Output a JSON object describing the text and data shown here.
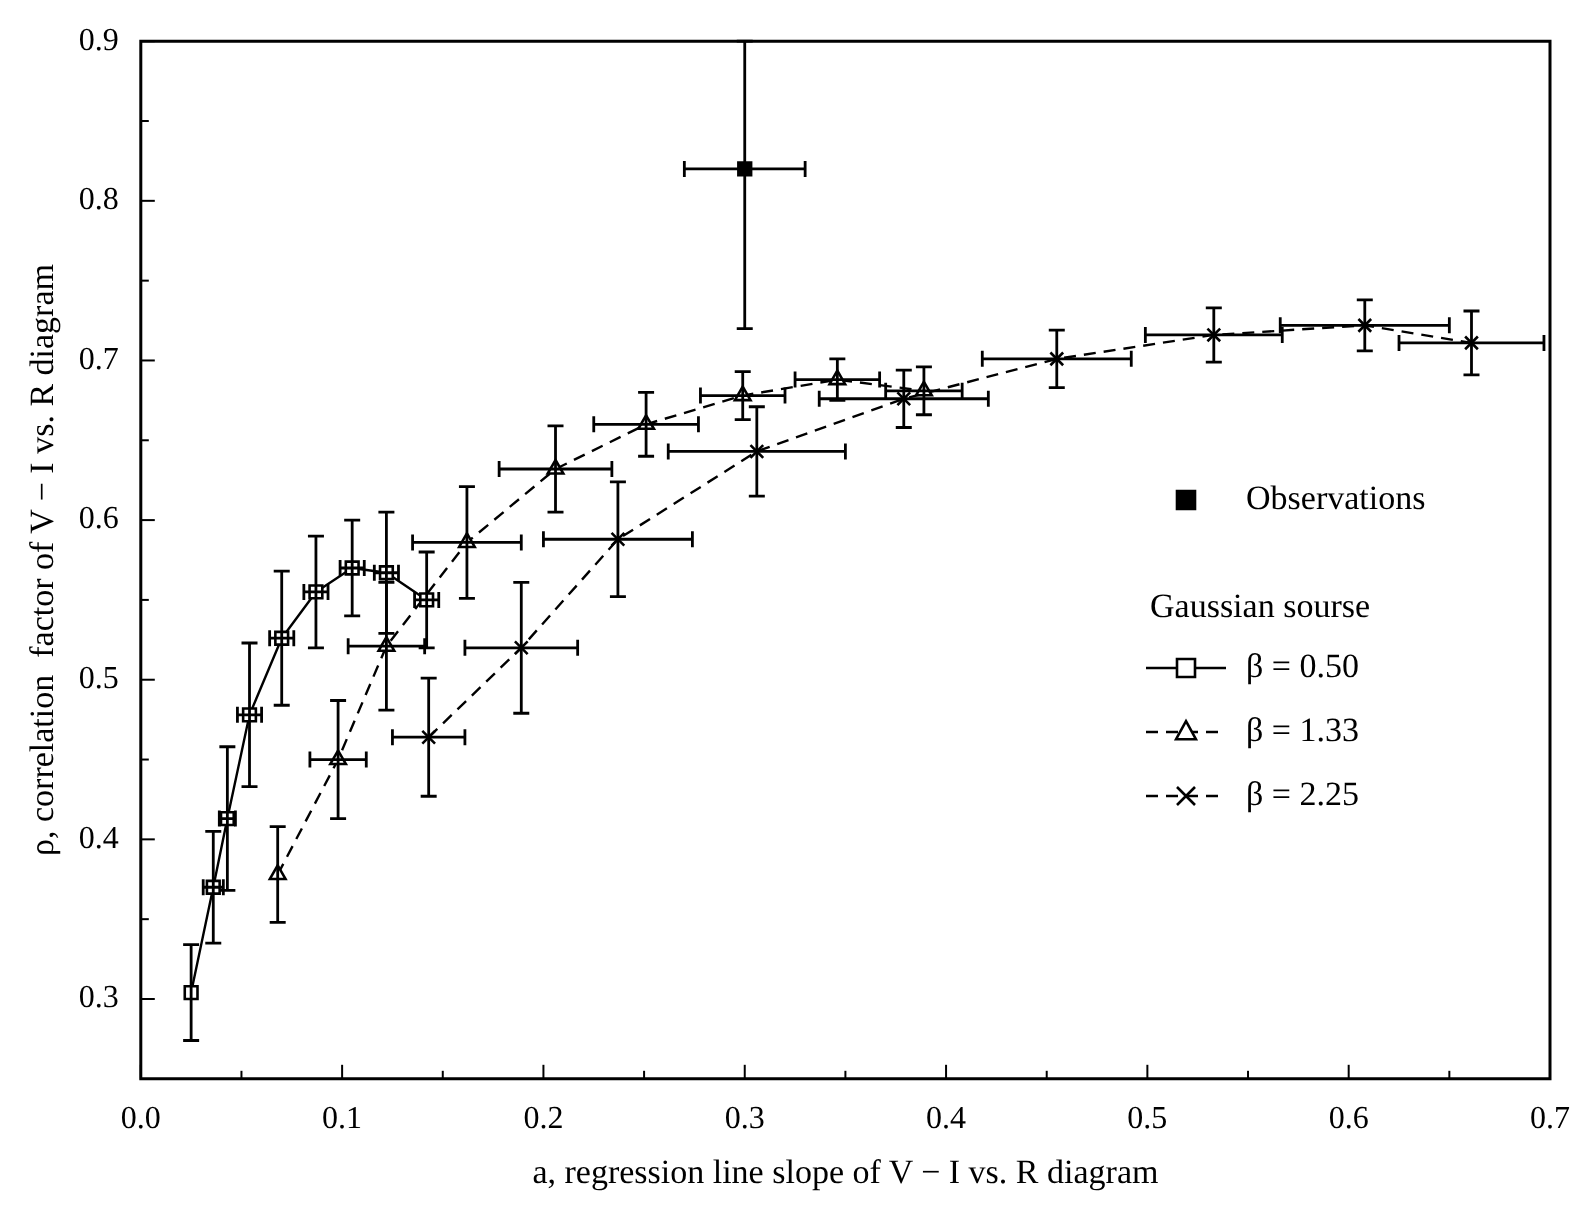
{
  "chart_data": {
    "type": "line",
    "xlabel": "a, regression line slope of V − I vs. R diagram",
    "ylabel": "ρ, correlation  factor of V − I vs. R diagram",
    "legend_title": "Gaussian sourse",
    "legend": "right",
    "grid": false,
    "xlim": [
      0,
      0.7
    ],
    "xticks": [
      {
        "value": 0,
        "label": "0.0"
      },
      {
        "value": 0.05,
        "label": null
      },
      0.1,
      {
        "value": 0.15,
        "label": null
      },
      0.2,
      {
        "value": 0.25,
        "label": null
      },
      0.3,
      {
        "value": 0.35,
        "label": null
      },
      0.4,
      {
        "value": 0.45,
        "label": null
      },
      0.5,
      {
        "value": 0.55,
        "label": null
      },
      0.6,
      {
        "value": 0.65,
        "label": null
      },
      0.7
    ],
    "ylim": [
      0.25,
      0.9
    ],
    "yticks": [
      0.3,
      {
        "value": 0.35,
        "label": null
      },
      0.4,
      {
        "value": 0.45,
        "label": null
      },
      0.5,
      {
        "value": 0.55,
        "label": null
      },
      0.6,
      {
        "value": 0.65,
        "label": null
      },
      0.7,
      {
        "value": 0.75,
        "label": null
      },
      0.8,
      {
        "value": 0.85,
        "label": null
      },
      0.9
    ],
    "series": [
      {
        "name": "Observations",
        "type": "scatter",
        "marker": "square",
        "color": "#000000",
        "x": [
          0.3
        ],
        "values": [
          0.82
        ],
        "errors": [
          [
            0.72,
            0.9
          ]
        ],
        "xerrors": [
          0.03
        ]
      },
      {
        "name": "β = 0.50",
        "marker": "square",
        "line_style": "solid",
        "color": "#000000",
        "x": [
          0.025,
          0.036,
          0.043,
          0.054,
          0.07,
          0.087,
          0.105,
          0.122,
          0.142
        ],
        "values": [
          0.304,
          0.37,
          0.413,
          0.478,
          0.526,
          0.555,
          0.57,
          0.567,
          0.55
        ],
        "errors": [
          0.03,
          0.035,
          0.045,
          0.045,
          0.042,
          0.035,
          0.03,
          0.038,
          0.03
        ],
        "xerrors": [
          null,
          0.005,
          0.004,
          0.006,
          0.006,
          0.006,
          0.006,
          0.006,
          0.006
        ]
      },
      {
        "name": "β = 1.33",
        "marker": "triangle",
        "line_style": "dashed",
        "color": "#000000",
        "x": [
          0.068,
          0.098,
          0.122,
          0.162,
          0.206,
          0.251,
          0.299,
          0.346,
          0.389
        ],
        "values": [
          0.378,
          0.45,
          0.521,
          0.586,
          0.632,
          0.66,
          0.678,
          0.688,
          0.681
        ],
        "errors": [
          0.03,
          0.037,
          0.04,
          0.035,
          0.027,
          0.02,
          0.015,
          0.013,
          0.015
        ],
        "xerrors": [
          null,
          0.014,
          0.019,
          0.027,
          0.028,
          0.026,
          0.021,
          0.021,
          0.019
        ]
      },
      {
        "name": "β = 2.25",
        "marker": "cross",
        "line_style": "dashed",
        "color": "#000000",
        "x": [
          0.143,
          0.189,
          0.237,
          0.306,
          0.379,
          0.455,
          0.533,
          0.608,
          0.661
        ],
        "values": [
          0.464,
          0.52,
          0.588,
          0.643,
          0.676,
          0.701,
          0.716,
          0.722,
          0.711
        ],
        "errors": [
          0.037,
          0.041,
          0.036,
          0.028,
          0.018,
          0.018,
          0.017,
          0.016,
          0.02
        ],
        "xerrors": [
          0.018,
          0.028,
          0.037,
          0.044,
          0.042,
          0.037,
          0.034,
          0.042,
          0.036
        ]
      }
    ]
  }
}
